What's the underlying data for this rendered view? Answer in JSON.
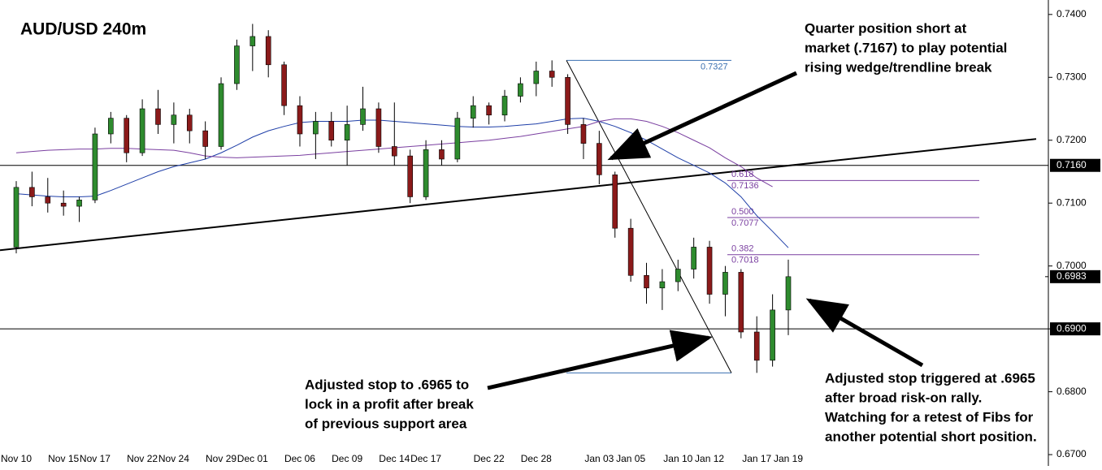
{
  "chart_data": {
    "type": "candlestick",
    "title": "AUD/USD 240m",
    "categories": [
      "Nov 10",
      null,
      null,
      "Nov 15",
      null,
      "Nov 17",
      null,
      null,
      "Nov 22",
      null,
      "Nov 24",
      null,
      null,
      "Nov 29",
      null,
      "Dec 01",
      null,
      null,
      "Dec 06",
      null,
      null,
      "Dec 09",
      null,
      null,
      "Dec 14",
      null,
      "Dec 17",
      null,
      null,
      null,
      "Dec 22",
      null,
      null,
      "Dec 28",
      null,
      null,
      null,
      "Jan 03",
      null,
      "Jan 05",
      null,
      null,
      "Jan 10",
      null,
      "Jan 12",
      null,
      null,
      "Jan 17",
      null,
      "Jan 19"
    ],
    "open": [
      0.703,
      0.7125,
      0.711,
      0.71,
      0.7095,
      0.7105,
      0.721,
      0.7235,
      0.718,
      0.725,
      0.7225,
      0.724,
      0.7215,
      0.719,
      0.729,
      0.735,
      0.7365,
      0.732,
      0.7255,
      0.721,
      0.723,
      0.72,
      0.7225,
      0.725,
      0.719,
      0.7175,
      0.711,
      0.7185,
      0.717,
      0.7235,
      0.7255,
      0.724,
      0.727,
      0.729,
      0.731,
      0.73,
      0.7225,
      0.7195,
      0.7145,
      0.706,
      0.6985,
      0.6965,
      0.6975,
      0.6995,
      0.703,
      0.6955,
      0.699,
      0.6895,
      0.685,
      0.693
    ],
    "high": [
      0.7135,
      0.715,
      0.714,
      0.712,
      0.711,
      0.722,
      0.7245,
      0.724,
      0.7265,
      0.728,
      0.726,
      0.725,
      0.723,
      0.73,
      0.736,
      0.7385,
      0.7375,
      0.7325,
      0.727,
      0.7245,
      0.7245,
      0.7255,
      0.7285,
      0.726,
      0.726,
      0.7185,
      0.72,
      0.72,
      0.7245,
      0.727,
      0.726,
      0.728,
      0.73,
      0.7325,
      0.7327,
      0.7305,
      0.7235,
      0.7215,
      0.715,
      0.7075,
      0.7005,
      0.6995,
      0.701,
      0.7045,
      0.704,
      0.7,
      0.6995,
      0.692,
      0.6955,
      0.701
    ],
    "low": [
      0.702,
      0.7095,
      0.7085,
      0.708,
      0.707,
      0.71,
      0.7195,
      0.7165,
      0.7175,
      0.721,
      0.7195,
      0.7195,
      0.717,
      0.7185,
      0.728,
      0.731,
      0.73,
      0.724,
      0.719,
      0.717,
      0.719,
      0.716,
      0.7215,
      0.718,
      0.716,
      0.71,
      0.7105,
      0.716,
      0.7165,
      0.722,
      0.7225,
      0.723,
      0.726,
      0.727,
      0.7285,
      0.721,
      0.717,
      0.713,
      0.7045,
      0.6975,
      0.694,
      0.693,
      0.696,
      0.698,
      0.694,
      0.692,
      0.6885,
      0.683,
      0.684,
      0.689
    ],
    "close": [
      0.7125,
      0.711,
      0.71,
      0.7095,
      0.7105,
      0.721,
      0.7235,
      0.718,
      0.725,
      0.7225,
      0.724,
      0.7215,
      0.719,
      0.729,
      0.735,
      0.7365,
      0.732,
      0.7255,
      0.721,
      0.723,
      0.72,
      0.7225,
      0.725,
      0.719,
      0.7175,
      0.711,
      0.7185,
      0.717,
      0.7235,
      0.7255,
      0.724,
      0.727,
      0.729,
      0.731,
      0.73,
      0.7225,
      0.7195,
      0.7145,
      0.706,
      0.6985,
      0.6965,
      0.6975,
      0.6995,
      0.703,
      0.6955,
      0.699,
      0.6895,
      0.685,
      0.693,
      0.6983
    ],
    "up_color": "#2e8b2e",
    "down_color": "#8b1a1a",
    "moving_averages": [
      {
        "color": "#1f3fa8",
        "values": [
          0.7115,
          0.7113,
          0.7111,
          0.711,
          0.711,
          0.7111,
          0.712,
          0.713,
          0.714,
          0.715,
          0.7158,
          0.7164,
          0.717,
          0.718,
          0.7192,
          0.7205,
          0.7215,
          0.7222,
          0.7228,
          0.723,
          0.723,
          0.723,
          0.7232,
          0.7232,
          0.723,
          0.7228,
          0.7226,
          0.7224,
          0.7222,
          0.7221,
          0.7221,
          0.7222,
          0.7224,
          0.7226,
          0.723,
          0.7234,
          0.7235,
          0.723,
          0.7222,
          0.7212,
          0.72,
          0.7186,
          0.7172,
          0.716,
          0.7148,
          0.7132,
          0.711,
          0.708,
          0.7055,
          0.7029
        ]
      },
      {
        "color": "#7a3fa0",
        "values": [
          0.718,
          0.7182,
          0.7184,
          0.7185,
          0.7186,
          0.7186,
          0.7187,
          0.7187,
          0.7186,
          0.7185,
          0.7184,
          0.718,
          0.7175,
          0.7173,
          0.7172,
          0.7173,
          0.7174,
          0.7175,
          0.7176,
          0.7178,
          0.718,
          0.7182,
          0.7184,
          0.7186,
          0.7188,
          0.719,
          0.7192,
          0.7194,
          0.7196,
          0.7198,
          0.72,
          0.7203,
          0.7206,
          0.721,
          0.7214,
          0.7218,
          0.7222,
          0.723,
          0.7234,
          0.7234,
          0.723,
          0.7222,
          0.7212,
          0.72,
          0.7188,
          0.7172,
          0.7158,
          0.714,
          0.7126,
          null
        ]
      }
    ],
    "ylim": [
      0.6682,
      0.7423
    ],
    "yticks": [
      {
        "value": 0.74,
        "label": "0.7400"
      },
      {
        "value": 0.73,
        "label": "0.7300"
      },
      {
        "value": 0.72,
        "label": "0.7200"
      },
      {
        "value": 0.71,
        "label": "0.7100"
      },
      {
        "value": 0.7,
        "label": "0.7000"
      },
      {
        "value": 0.69,
        "label": "0.6900"
      },
      {
        "value": 0.68,
        "label": "0.6800"
      },
      {
        "value": 0.67,
        "label": "0.6700"
      }
    ],
    "levels": [
      {
        "value": 0.716,
        "label": "0.7160"
      },
      {
        "value": 0.69,
        "label": "0.6900"
      }
    ],
    "last_price": {
      "value": 0.6983,
      "label": "0.6983"
    },
    "trendline": [
      0.7025,
      0.7202
    ],
    "swing_high": 0.7327,
    "swing_low": 0.683,
    "fibs": [
      {
        "ratio": "0.618",
        "price": 0.7136
      },
      {
        "ratio": "0.500",
        "price": 0.7077
      },
      {
        "ratio": "0.382",
        "price": 0.7018
      }
    ],
    "annotations": [
      [
        "Quarter position short at",
        "market (.7167) to play potential",
        "rising wedge/trendline break"
      ],
      [
        "Adjusted stop to .6965 to",
        "lock in a profit after break",
        "of previous support area"
      ],
      [
        "Adjusted stop triggered at .6965",
        "after broad risk-on rally.",
        "Watching for a retest of Fibs for",
        "another potential short position."
      ]
    ]
  }
}
